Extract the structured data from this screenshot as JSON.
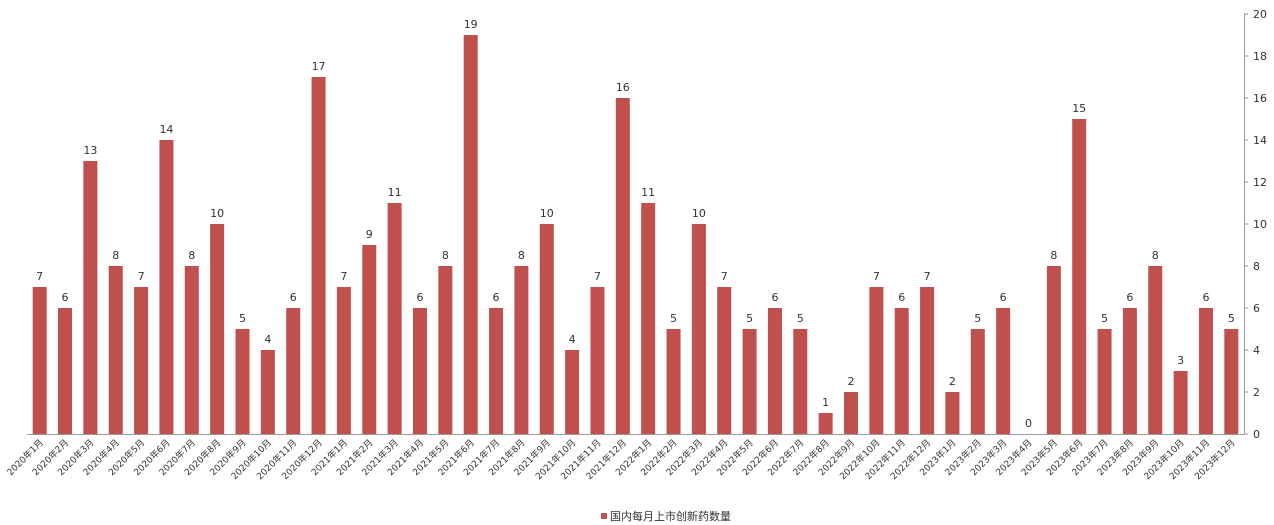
{
  "chart_data": {
    "type": "bar",
    "title": "",
    "xlabel": "",
    "ylabel": "",
    "ylim": [
      0,
      20
    ],
    "yticks": [
      0,
      2,
      4,
      6,
      8,
      10,
      12,
      14,
      16,
      18,
      20
    ],
    "y_axis_side": "right",
    "grid": false,
    "legend_position": "bottom",
    "show_data_labels": true,
    "colors": {
      "bar": "#c0504d",
      "axis": "#9a9a9a",
      "text": "#333333"
    },
    "categories": [
      "2020年1月",
      "2020年2月",
      "2020年3月",
      "2020年4月",
      "2020年5月",
      "2020年6月",
      "2020年7月",
      "2020年8月",
      "2020年9月",
      "2020年10月",
      "2020年11月",
      "2020年12月",
      "2021年1月",
      "2021年2月",
      "2021年3月",
      "2021年4月",
      "2021年5月",
      "2021年6月",
      "2021年7月",
      "2021年8月",
      "2021年9月",
      "2021年10月",
      "2021年11月",
      "2021年12月",
      "2022年1月",
      "2022年2月",
      "2022年3月",
      "2022年4月",
      "2022年5月",
      "2022年6月",
      "2022年7月",
      "2022年8月",
      "2022年9月",
      "2022年10月",
      "2022年11月",
      "2022年12月",
      "2023年1月",
      "2023年2月",
      "2023年3月",
      "2023年4月",
      "2023年5月",
      "2023年6月",
      "2023年7月",
      "2023年8月",
      "2023年9月",
      "2023年10月",
      "2023年11月",
      "2023年12月"
    ],
    "series": [
      {
        "name": "国内每月上市创新药数量",
        "values": [
          7,
          6,
          13,
          8,
          7,
          14,
          8,
          10,
          5,
          4,
          6,
          17,
          7,
          9,
          11,
          6,
          8,
          19,
          6,
          8,
          10,
          4,
          7,
          16,
          11,
          5,
          10,
          7,
          5,
          6,
          5,
          1,
          2,
          7,
          6,
          7,
          2,
          5,
          6,
          0,
          8,
          15,
          5,
          6,
          8,
          3,
          6,
          5
        ]
      }
    ]
  }
}
